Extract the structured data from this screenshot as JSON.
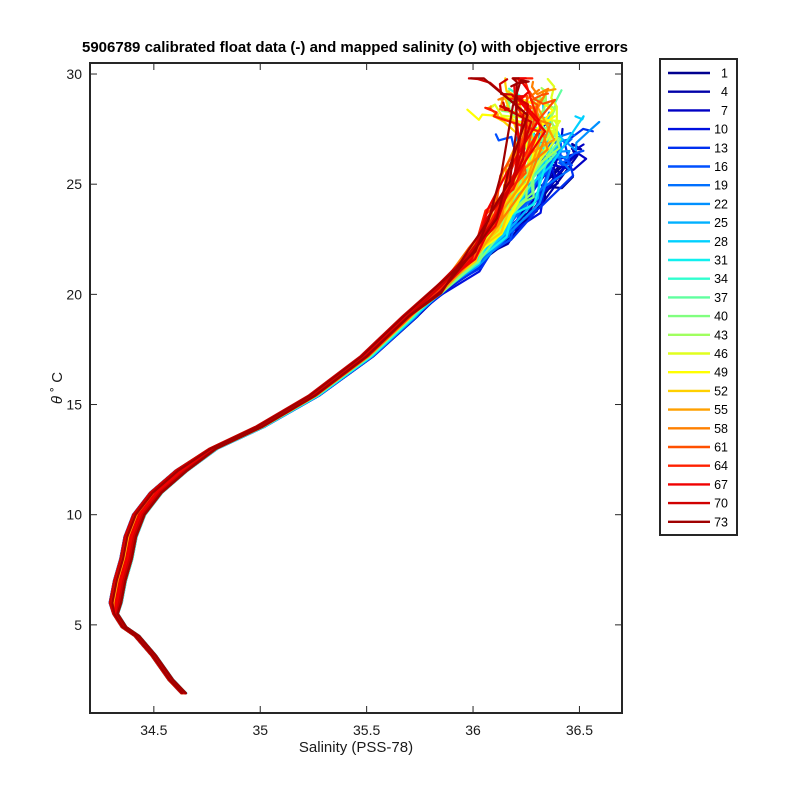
{
  "chart_data": {
    "type": "line",
    "title": "5906789 calibrated float data (-) and mapped salinity (o) with objective errors",
    "xlabel": "Salinity (PSS-78)",
    "ylabel_symbol": "θ",
    "ylabel_unit": "˚ C",
    "xlim": [
      34.2,
      36.7
    ],
    "ylim": [
      1.0,
      30.5
    ],
    "x_ticks": [
      34.5,
      35,
      35.5,
      36,
      36.5
    ],
    "x_tick_labels": [
      "34.5",
      "35",
      "35.5",
      "36",
      "36.5"
    ],
    "y_ticks": [
      5,
      10,
      15,
      20,
      25,
      30
    ],
    "y_tick_labels": [
      "5",
      "10",
      "15",
      "20",
      "25",
      "30"
    ],
    "grid": false,
    "legend_position": "outside-right",
    "base_profile": {
      "x": [
        34.64,
        34.58,
        34.5,
        34.42,
        34.36,
        34.34,
        34.32,
        34.31,
        34.33,
        34.36,
        34.38,
        34.42,
        34.5,
        34.62,
        34.78,
        35.0,
        35.25,
        35.5,
        35.7,
        35.85,
        36.0,
        36.1,
        36.2,
        36.3
      ],
      "y": [
        1.9,
        2.5,
        3.6,
        4.5,
        4.9,
        5.2,
        5.5,
        6.0,
        7.0,
        8.0,
        9.0,
        10.0,
        11.0,
        12.0,
        13.0,
        14.0,
        15.4,
        17.2,
        19.0,
        20.2,
        21.2,
        22.2,
        23.5,
        25.0
      ]
    },
    "series": [
      {
        "name": "1",
        "color": "#00008f"
      },
      {
        "name": "4",
        "color": "#0000a8"
      },
      {
        "name": "7",
        "color": "#0000c4"
      },
      {
        "name": "10",
        "color": "#0010df"
      },
      {
        "name": "13",
        "color": "#0030f0"
      },
      {
        "name": "16",
        "color": "#0050ff"
      },
      {
        "name": "19",
        "color": "#0070ff"
      },
      {
        "name": "22",
        "color": "#0090ff"
      },
      {
        "name": "25",
        "color": "#00b0ff"
      },
      {
        "name": "28",
        "color": "#00d0ff"
      },
      {
        "name": "31",
        "color": "#10f0ef"
      },
      {
        "name": "34",
        "color": "#30ffcf"
      },
      {
        "name": "37",
        "color": "#60ff9f"
      },
      {
        "name": "40",
        "color": "#80ff7f"
      },
      {
        "name": "43",
        "color": "#a0ff5f"
      },
      {
        "name": "46",
        "color": "#e0ff1f"
      },
      {
        "name": "49",
        "color": "#ffff00"
      },
      {
        "name": "52",
        "color": "#ffd000"
      },
      {
        "name": "55",
        "color": "#ffa000"
      },
      {
        "name": "58",
        "color": "#ff8000"
      },
      {
        "name": "61",
        "color": "#ff5000"
      },
      {
        "name": "64",
        "color": "#ff2000"
      },
      {
        "name": "67",
        "color": "#f00000"
      },
      {
        "name": "70",
        "color": "#d00000"
      },
      {
        "name": "73",
        "color": "#a00000"
      }
    ]
  }
}
